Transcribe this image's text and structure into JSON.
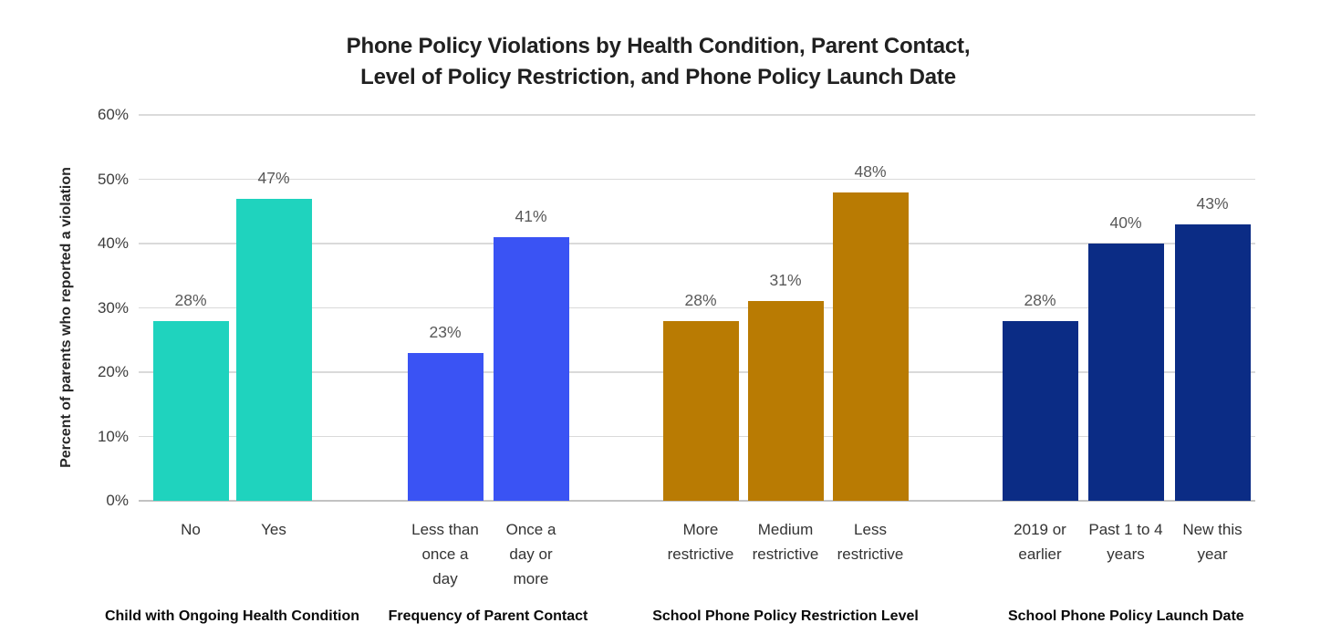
{
  "title": {
    "line1": "Phone Policy Violations by Health Condition, Parent Contact,",
    "line2": "Level of Policy Restriction, and Phone Policy Launch Date"
  },
  "chart_data": {
    "type": "bar",
    "title": "Phone Policy Violations by Health Condition, Parent Contact, Level of Policy Restriction, and Phone Policy Launch Date",
    "ylabel": "Percent of parents who reported a violation",
    "ylim": [
      0,
      60
    ],
    "yticks": [
      0,
      10,
      20,
      30,
      40,
      50,
      60
    ],
    "ytick_suffix": "%",
    "value_label_suffix": "%",
    "grid": true,
    "legend": false,
    "groups": [
      {
        "name": "Child with Ongoing Health Condition",
        "color": "#1FD3BE",
        "bars": [
          {
            "label": "No",
            "value": 28
          },
          {
            "label": "Yes",
            "value": 47
          }
        ]
      },
      {
        "name": "Frequency of Parent Contact",
        "color": "#3A53F4",
        "bars": [
          {
            "label": "Less than\nonce a\nday",
            "value": 23
          },
          {
            "label": "Once a\nday or\nmore",
            "value": 41
          }
        ]
      },
      {
        "name": "School Phone Policy Restriction Level",
        "color": "#B97B03",
        "bars": [
          {
            "label": "More\nrestrictive",
            "value": 28
          },
          {
            "label": "Medium\nrestrictive",
            "value": 31
          },
          {
            "label": "Less\nrestrictive",
            "value": 48
          }
        ]
      },
      {
        "name": "School Phone Policy Launch Date",
        "color": "#0B2C85",
        "bars": [
          {
            "label": "2019 or\nearlier",
            "value": 28
          },
          {
            "label": "Past 1 to 4\nyears",
            "value": 40
          },
          {
            "label": "New this\nyear",
            "value": 43
          }
        ]
      }
    ]
  }
}
